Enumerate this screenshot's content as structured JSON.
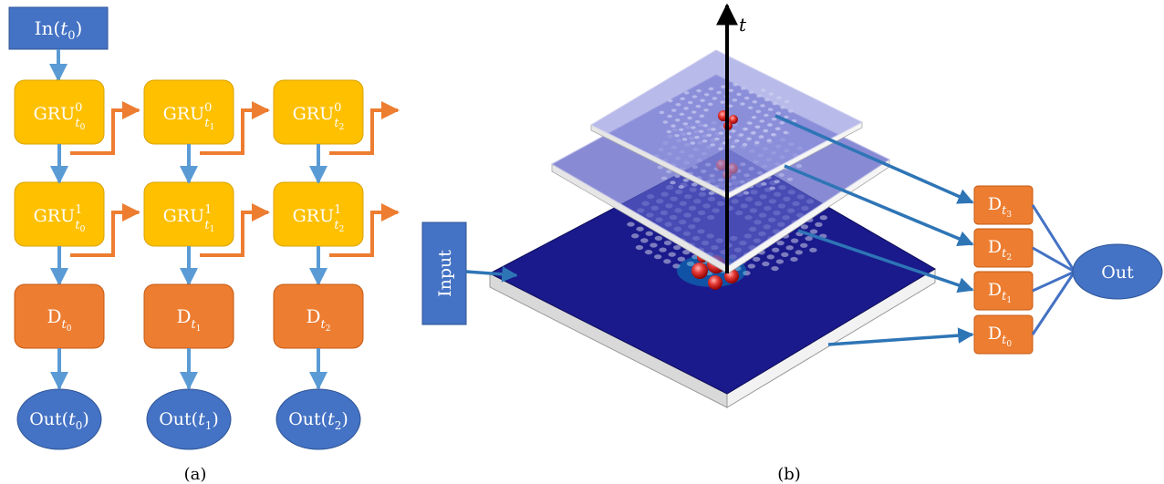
{
  "panel_a": {
    "caption": "(a)",
    "input": {
      "base": "In(",
      "var": "t",
      "sub": "0",
      "close": ")"
    },
    "gru_label": "GRU",
    "decoder_label": "D",
    "output_label": {
      "base": "Out(",
      "var": "t",
      "close": ")"
    },
    "columns": [
      {
        "time_sub": "0"
      },
      {
        "time_sub": "1"
      },
      {
        "time_sub": "2"
      }
    ],
    "layers": [
      {
        "index": "0"
      },
      {
        "index": "1"
      }
    ]
  },
  "panel_b": {
    "caption": "(b)",
    "input_label": "Input",
    "output_label": "Out",
    "axis_label": "t",
    "decoder_label": "D",
    "detectors": [
      {
        "time_sub": "3"
      },
      {
        "time_sub": "2"
      },
      {
        "time_sub": "1"
      },
      {
        "time_sub": "0"
      }
    ]
  },
  "colors": {
    "input_box": "#4472c4",
    "gru_box": "#ffc000",
    "gru_border": "#d9a300",
    "decoder_box": "#ed7d31",
    "output_ellipse": "#4472c4",
    "vertical_arrow": "#5b9bd5",
    "recurrent_arrow": "#ed7d31",
    "connection_arrow": "#2e75b6",
    "slab_top": "#1a1a8c",
    "glass_layer": "#7b7fd0",
    "hole": "#8e8ec8",
    "hotspot": "#e53935"
  },
  "icons": {
    "arrowhead": "arrowhead-icon",
    "hotspot": "field-hotspot-icon"
  }
}
